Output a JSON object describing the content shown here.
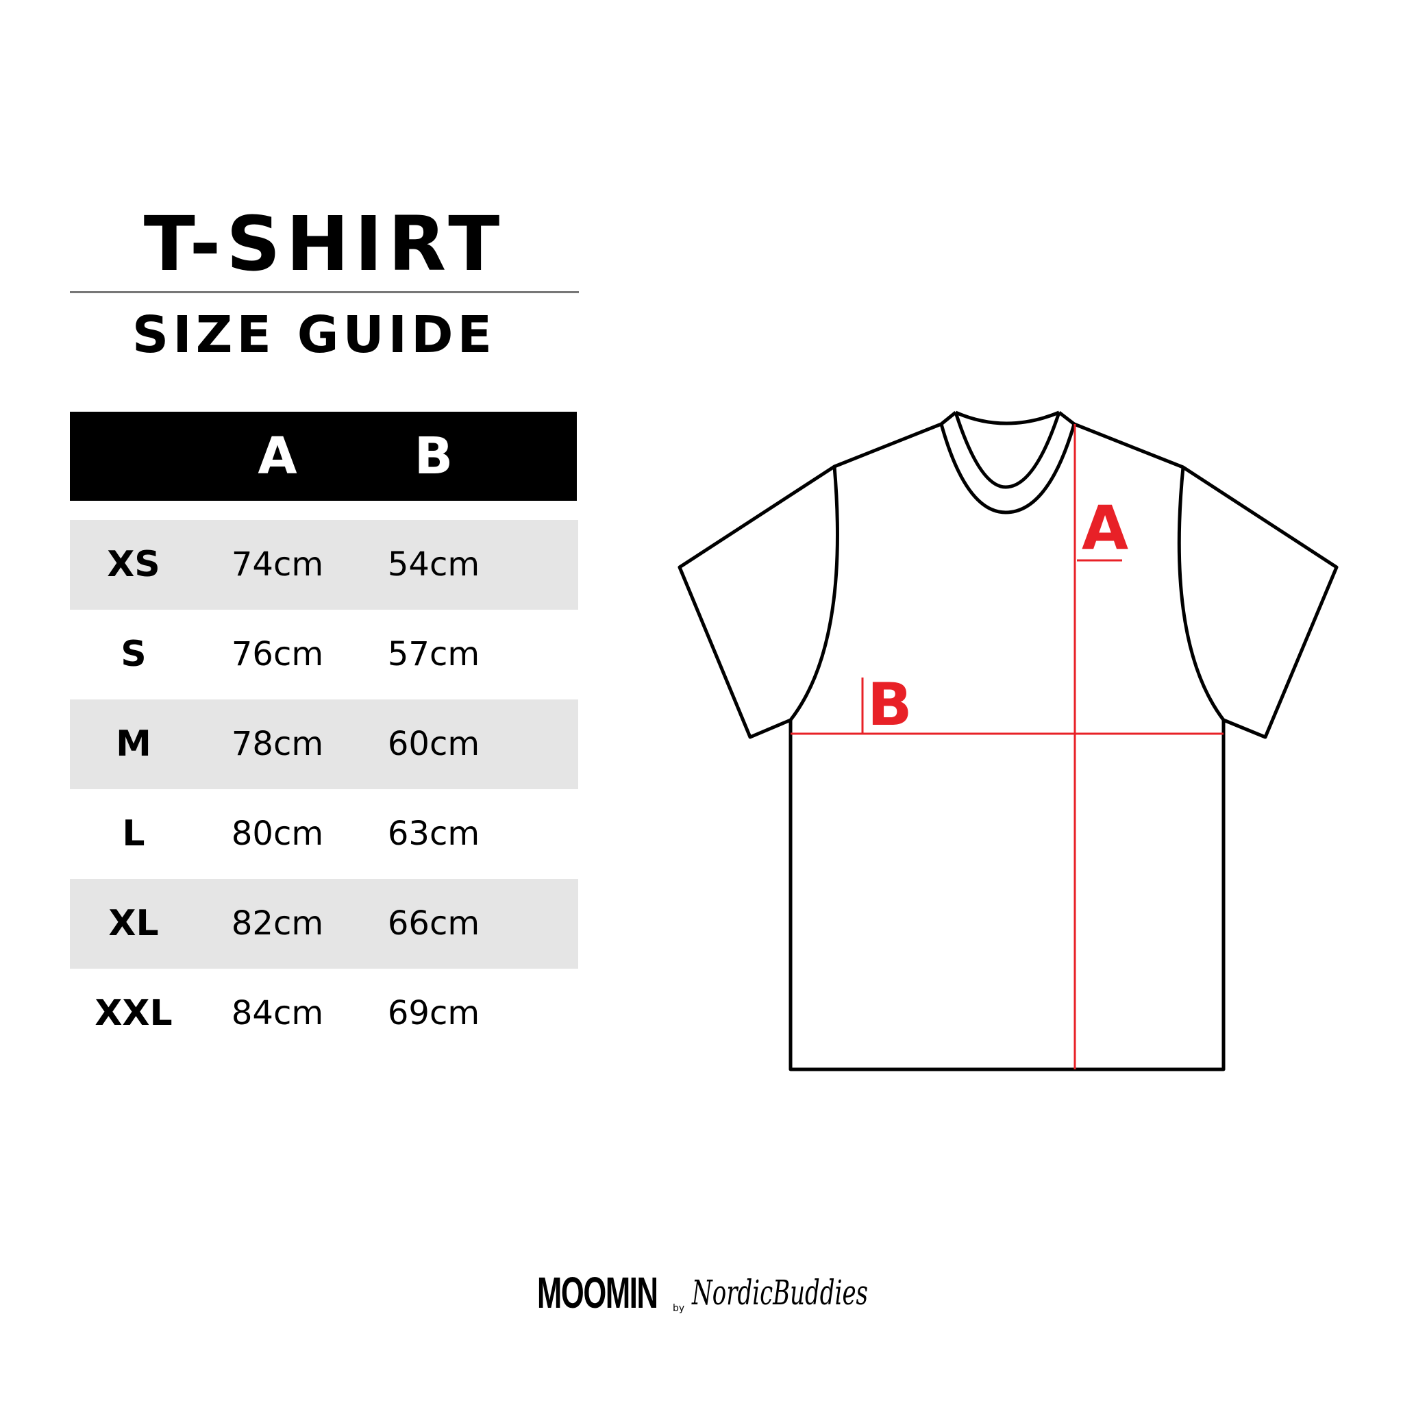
{
  "title": "T-SHIRT",
  "subtitle": "SIZE GUIDE",
  "table": {
    "headers": [
      "",
      "A",
      "B"
    ],
    "rows": [
      {
        "size": "XS",
        "a": "74cm",
        "b": "54cm"
      },
      {
        "size": "S",
        "a": "76cm",
        "b": "57cm"
      },
      {
        "size": "M",
        "a": "78cm",
        "b": "60cm"
      },
      {
        "size": "L",
        "a": "80cm",
        "b": "63cm"
      },
      {
        "size": "XL",
        "a": "82cm",
        "b": "66cm"
      },
      {
        "size": "XXL",
        "a": "84cm",
        "b": "69cm"
      }
    ]
  },
  "diagram": {
    "label_a": "A",
    "label_b": "B",
    "measure_color": "#e82127",
    "outline_color": "#000000"
  },
  "logo": {
    "brand1": "MOOMIN",
    "by": "by",
    "brand2": "NordicBuddies"
  },
  "colors": {
    "header_bg": "#000000",
    "row_shade": "#e5e5e5",
    "rule": "#777777"
  }
}
